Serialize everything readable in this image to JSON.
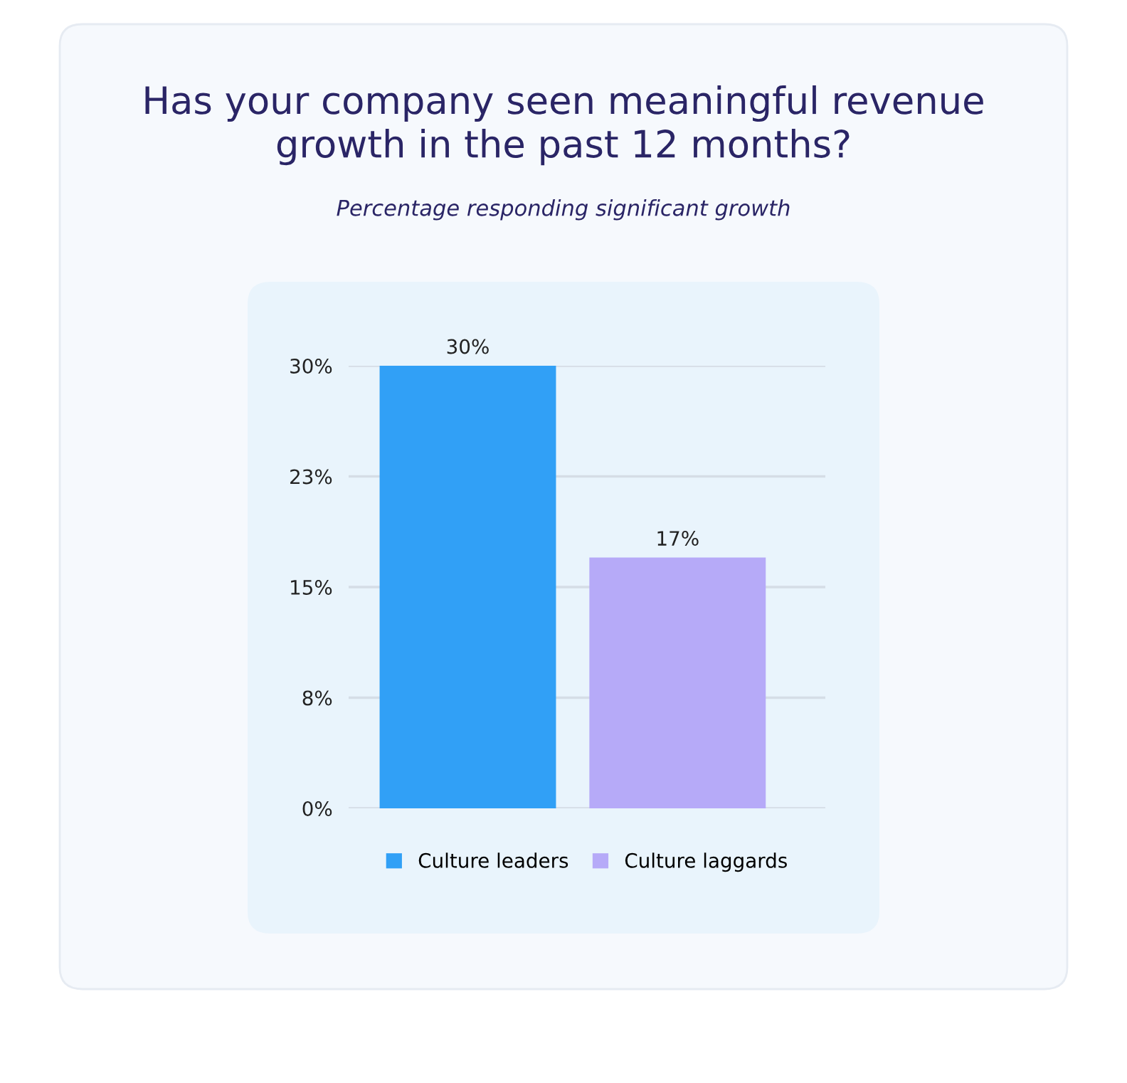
{
  "chart_data": {
    "type": "bar",
    "title": "Has your company seen meaningful revenue\ngrowth in the past 12 months?",
    "subtitle": "Percentage responding significant growth",
    "categories": [
      null
    ],
    "series": [
      {
        "name": "Culture leaders",
        "color": "#31a0f6",
        "values": [
          30
        ],
        "value_labels": [
          "30%"
        ]
      },
      {
        "name": "Culture laggards",
        "color": "#b6aaf8",
        "values": [
          17
        ],
        "value_labels": [
          "17%"
        ]
      }
    ],
    "ylim": [
      0,
      30
    ],
    "yticks": [
      {
        "value": 0,
        "label": "0%"
      },
      {
        "value": 7.5,
        "label": "8%"
      },
      {
        "value": 15,
        "label": "15%"
      },
      {
        "value": 22.5,
        "label": "23%"
      },
      {
        "value": 30,
        "label": "30%"
      }
    ],
    "grid": "y",
    "legend": "bottom",
    "tick_labels": "y"
  }
}
